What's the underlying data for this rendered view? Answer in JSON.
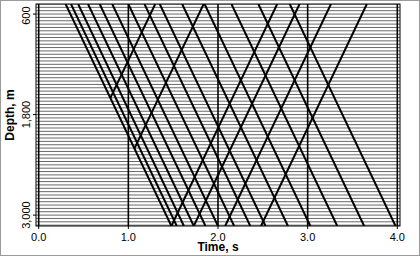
{
  "chart_data": {
    "type": "wiggle",
    "x_label": "Time, s",
    "y_label": "Depth, m",
    "xlim": [
      -0.03,
      4.03
    ],
    "xticks": [
      {
        "value": 0,
        "label": "0.0"
      },
      {
        "value": 1,
        "label": "1.0"
      },
      {
        "value": 2,
        "label": "2.0"
      },
      {
        "value": 3,
        "label": "3.0"
      },
      {
        "value": 4,
        "label": "4.0"
      }
    ],
    "ylim": [
      3130,
      480
    ],
    "yticks": [
      600,
      {
        "value": 1800,
        "label": "1,800"
      },
      {
        "value": 3000,
        "label": "3,000"
      }
    ],
    "grid": true,
    "color": "#000000",
    "trace_depths": [
      480,
      520,
      560,
      600,
      640,
      680,
      720,
      760,
      800,
      840,
      880,
      920,
      960,
      1000,
      1040,
      1080,
      1120,
      1160,
      1200,
      1240,
      1280,
      1320,
      1360,
      1400,
      1440,
      1480,
      1520,
      1560,
      1600,
      1640,
      1680,
      1720,
      1760,
      1800,
      1840,
      1880,
      1920,
      1960,
      2000,
      2040,
      2080,
      2120,
      2160,
      2200,
      2240,
      2280,
      2320,
      2360,
      2400,
      2440,
      2480,
      2520,
      2560,
      2600,
      2640,
      2680,
      2720,
      2760,
      2800,
      2840,
      2880,
      2920,
      2960,
      3000,
      3040,
      3080,
      3120
    ],
    "events": [
      {
        "x": [
          0.3,
          1.48
        ],
        "y": [
          480,
          3130
        ]
      },
      {
        "x": [
          0.36,
          1.54
        ],
        "y": [
          480,
          3130
        ]
      },
      {
        "x": [
          0.44,
          1.62
        ],
        "y": [
          480,
          3130
        ]
      },
      {
        "x": [
          0.55,
          1.73
        ],
        "y": [
          480,
          3130
        ]
      },
      {
        "x": [
          0.68,
          1.86
        ],
        "y": [
          480,
          3130
        ]
      },
      {
        "x": [
          0.82,
          2.0
        ],
        "y": [
          480,
          3130
        ]
      },
      {
        "x": [
          1.0,
          2.18
        ],
        "y": [
          480,
          3130
        ]
      },
      {
        "x": [
          1.18,
          2.36
        ],
        "y": [
          480,
          3130
        ]
      },
      {
        "x": [
          1.35,
          2.53
        ],
        "y": [
          480,
          3130
        ]
      },
      {
        "x": [
          1.6,
          2.78
        ],
        "y": [
          480,
          3130
        ]
      },
      {
        "x": [
          1.85,
          3.03
        ],
        "y": [
          480,
          3130
        ]
      },
      {
        "x": [
          2.15,
          3.33
        ],
        "y": [
          480,
          3130
        ]
      },
      {
        "x": [
          2.45,
          3.63
        ],
        "y": [
          480,
          3130
        ]
      },
      {
        "x": [
          2.8,
          3.98
        ],
        "y": [
          480,
          3130
        ]
      },
      {
        "x": [
          2.66,
          1.48
        ],
        "y": [
          480,
          3130
        ]
      },
      {
        "x": [
          2.91,
          1.73
        ],
        "y": [
          480,
          3130
        ]
      },
      {
        "x": [
          3.26,
          2.08
        ],
        "y": [
          480,
          3130
        ]
      },
      {
        "x": [
          3.66,
          2.48
        ],
        "y": [
          480,
          3130
        ]
      },
      {
        "x": [
          1.84,
          1.07
        ],
        "y": [
          480,
          2200
        ]
      },
      {
        "x": [
          1.3,
          0.8
        ],
        "y": [
          480,
          1600
        ]
      }
    ]
  }
}
